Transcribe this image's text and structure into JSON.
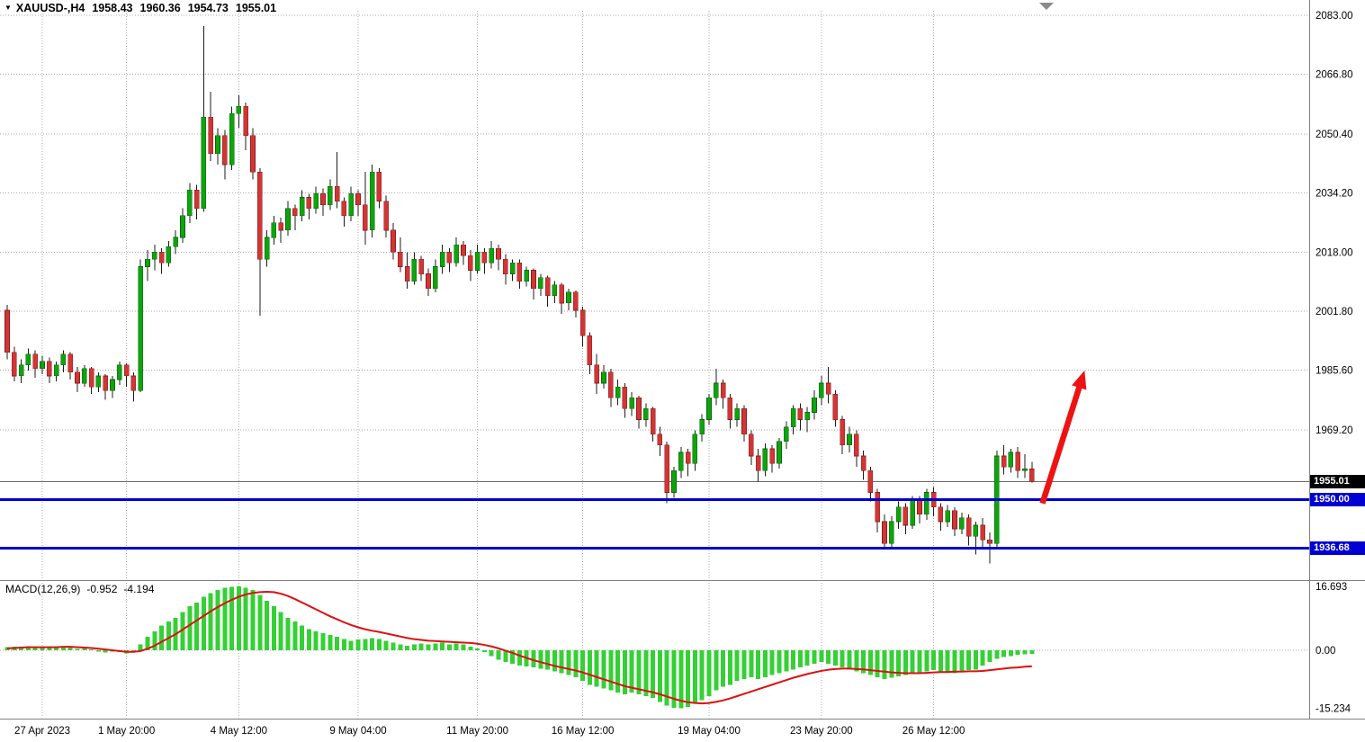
{
  "header": {
    "symbol_period": "XAUUSD-,H4",
    "open": "1958.43",
    "high": "1960.36",
    "low": "1954.73",
    "close": "1955.01"
  },
  "indicator": {
    "label": "MACD(12,26,9)",
    "main_value": "-0.952",
    "signal_value": "-4.194"
  },
  "price_axis": {
    "ticks": [
      {
        "label": "2083.00",
        "value": 2083.0
      },
      {
        "label": "2066.80",
        "value": 2066.8
      },
      {
        "label": "2050.40",
        "value": 2050.4
      },
      {
        "label": "2034.20",
        "value": 2034.2
      },
      {
        "label": "2018.00",
        "value": 2018.0
      },
      {
        "label": "2001.80",
        "value": 2001.8
      },
      {
        "label": "1985.60",
        "value": 1985.6
      },
      {
        "label": "1969.20",
        "value": 1969.2
      }
    ]
  },
  "macd_axis": {
    "ticks": [
      {
        "label": "16.693",
        "value": 16.693
      },
      {
        "label": "0.00",
        "value": 0
      },
      {
        "label": "-15.234",
        "value": -15.234
      }
    ]
  },
  "price_tags": [
    {
      "text": "1955.01",
      "value": 1955.01,
      "bg": "#000000"
    },
    {
      "text": "1950.00",
      "value": 1950.0,
      "bg": "#0000d2"
    },
    {
      "text": "1936.68",
      "value": 1936.68,
      "bg": "#0000d2"
    }
  ],
  "chart_data": {
    "type": "candlestick",
    "symbol": "XAUUSD-",
    "timeframe": "H4",
    "title": "XAUUSD-,H4 1958.43 1960.36 1954.73 1955.01",
    "y_range": [
      1928,
      2085
    ],
    "grid": true,
    "last_price": 1955.01,
    "hlines": [
      {
        "value": 1950.0
      },
      {
        "value": 1936.68
      }
    ],
    "time_ticks": [
      {
        "label": "27 Apr 2023",
        "index": 5
      },
      {
        "label": "1 May 20:00",
        "index": 17
      },
      {
        "label": "4 May 12:00",
        "index": 33
      },
      {
        "label": "9 May 04:00",
        "index": 50
      },
      {
        "label": "11 May 20:00",
        "index": 67
      },
      {
        "label": "16 May 12:00",
        "index": 82
      },
      {
        "label": "19 May 04:00",
        "index": 100
      },
      {
        "label": "23 May 20:00",
        "index": 116
      },
      {
        "label": "26 May 12:00",
        "index": 132
      }
    ],
    "candles": [
      [
        2002,
        2003.5,
        1988.5,
        1990.5
      ],
      [
        1990.5,
        1992,
        1982.5,
        1984
      ],
      [
        1984,
        1988.5,
        1982,
        1987
      ],
      [
        1987,
        1991.5,
        1985.5,
        1990
      ],
      [
        1990,
        1991,
        1983.5,
        1986
      ],
      [
        1986,
        1989.5,
        1984.5,
        1988
      ],
      [
        1988,
        1989,
        1982,
        1984
      ],
      [
        1984,
        1988,
        1982.5,
        1987
      ],
      [
        1987,
        1991,
        1985,
        1990
      ],
      [
        1990,
        1990.5,
        1983,
        1985
      ],
      [
        1985,
        1986.5,
        1979.5,
        1982
      ],
      [
        1982,
        1987,
        1981,
        1986
      ],
      [
        1986,
        1986.5,
        1979,
        1981
      ],
      [
        1981,
        1985,
        1979.5,
        1984
      ],
      [
        1984,
        1984.5,
        1977.5,
        1980
      ],
      [
        1980,
        1984,
        1978,
        1983
      ],
      [
        1983,
        1988,
        1981.5,
        1987
      ],
      [
        1987,
        1987.5,
        1981,
        1984
      ],
      [
        1984,
        1985,
        1977,
        1980
      ],
      [
        1980,
        2016,
        1979.5,
        2014
      ],
      [
        2014,
        2018.5,
        2010,
        2016
      ],
      [
        2016,
        2020,
        2013,
        2018
      ],
      [
        2018,
        2019,
        2012,
        2015
      ],
      [
        2015,
        2021,
        2014,
        2019.5
      ],
      [
        2019.5,
        2024,
        2017.5,
        2022
      ],
      [
        2022,
        2030,
        2020.5,
        2028
      ],
      [
        2028,
        2037,
        2026,
        2035
      ],
      [
        2035,
        2036.5,
        2027,
        2030
      ],
      [
        2030,
        2080,
        2029,
        2055
      ],
      [
        2055,
        2062,
        2043,
        2045
      ],
      [
        2045,
        2052,
        2042,
        2050
      ],
      [
        2050,
        2051.5,
        2038,
        2042
      ],
      [
        2042,
        2058,
        2040.5,
        2056
      ],
      [
        2056,
        2061,
        2052,
        2058
      ],
      [
        2058,
        2059,
        2046,
        2050
      ],
      [
        2050,
        2052,
        2038,
        2040
      ],
      [
        2040,
        2041,
        2000.5,
        2016
      ],
      [
        2016,
        2024,
        2014,
        2022
      ],
      [
        2022,
        2028,
        2020,
        2026
      ],
      [
        2026,
        2027.5,
        2020.5,
        2024
      ],
      [
        2024,
        2032,
        2022.5,
        2030
      ],
      [
        2030,
        2031,
        2024,
        2028
      ],
      [
        2028,
        2035,
        2026.5,
        2033
      ],
      [
        2033,
        2034,
        2027,
        2030
      ],
      [
        2030,
        2036,
        2028.5,
        2034
      ],
      [
        2034,
        2035.5,
        2028,
        2031
      ],
      [
        2031,
        2038,
        2029.5,
        2036
      ],
      [
        2036,
        2045.5,
        2030,
        2032
      ],
      [
        2032,
        2033,
        2025,
        2028
      ],
      [
        2028,
        2036,
        2026.5,
        2034
      ],
      [
        2034,
        2035,
        2028,
        2031
      ],
      [
        2031,
        2040,
        2020,
        2024
      ],
      [
        2024,
        2042,
        2022,
        2040
      ],
      [
        2040,
        2041,
        2030,
        2032
      ],
      [
        2032,
        2033.5,
        2022,
        2024
      ],
      [
        2024,
        2026,
        2016,
        2018
      ],
      [
        2018,
        2022,
        2012.5,
        2014
      ],
      [
        2014,
        2018,
        2008,
        2010
      ],
      [
        2010,
        2018,
        2009,
        2016
      ],
      [
        2016,
        2017,
        2010,
        2012
      ],
      [
        2012,
        2013.5,
        2006,
        2008
      ],
      [
        2008,
        2016,
        2007,
        2014
      ],
      [
        2014,
        2020,
        2012,
        2018
      ],
      [
        2018,
        2019,
        2012.5,
        2015
      ],
      [
        2015,
        2022,
        2014,
        2020
      ],
      [
        2020,
        2021,
        2014.5,
        2017
      ],
      [
        2017,
        2018.5,
        2010,
        2013
      ],
      [
        2013,
        2020,
        2012,
        2018
      ],
      [
        2018,
        2019,
        2012,
        2015
      ],
      [
        2015,
        2021,
        2013.5,
        2019
      ],
      [
        2019,
        2020,
        2013,
        2016
      ],
      [
        2016,
        2017.5,
        2009,
        2012
      ],
      [
        2012,
        2016,
        2010,
        2015
      ],
      [
        2015,
        2016,
        2008,
        2010
      ],
      [
        2010,
        2014,
        2008.5,
        2013
      ],
      [
        2013,
        2013.5,
        2005,
        2008
      ],
      [
        2008,
        2012,
        2006,
        2011
      ],
      [
        2011,
        2011.5,
        2003,
        2006
      ],
      [
        2006,
        2010,
        2004,
        2009
      ],
      [
        2009,
        2009.5,
        2001,
        2004
      ],
      [
        2004,
        2008,
        2002,
        2007
      ],
      [
        2007,
        2007.5,
        2000,
        2002
      ],
      [
        2002,
        2003,
        1992,
        1995
      ],
      [
        1995,
        1996,
        1984.5,
        1987
      ],
      [
        1987,
        1990,
        1979,
        1982
      ],
      [
        1982,
        1987,
        1980.5,
        1985
      ],
      [
        1985,
        1986,
        1975.5,
        1978
      ],
      [
        1978,
        1983,
        1976,
        1981
      ],
      [
        1981,
        1982,
        1972.5,
        1975
      ],
      [
        1975,
        1979.5,
        1973,
        1978
      ],
      [
        1978,
        1978.5,
        1969.5,
        1972
      ],
      [
        1972,
        1976.5,
        1970,
        1975
      ],
      [
        1975,
        1975.5,
        1966,
        1968
      ],
      [
        1968,
        1970,
        1962,
        1965
      ],
      [
        1965,
        1966,
        1949,
        1952
      ],
      [
        1952,
        1959,
        1950.5,
        1958
      ],
      [
        1958,
        1964.5,
        1956,
        1963
      ],
      [
        1963,
        1964,
        1956.5,
        1960
      ],
      [
        1960,
        1969,
        1958,
        1968
      ],
      [
        1968,
        1973.5,
        1966,
        1972
      ],
      [
        1972,
        1979,
        1970.5,
        1978
      ],
      [
        1978,
        1986,
        1976,
        1982
      ],
      [
        1982,
        1983,
        1975,
        1978
      ],
      [
        1978,
        1979,
        1969.5,
        1972
      ],
      [
        1972,
        1976.5,
        1970,
        1975
      ],
      [
        1975,
        1976,
        1966,
        1968
      ],
      [
        1968,
        1969,
        1959.5,
        1962
      ],
      [
        1962,
        1964,
        1955,
        1958
      ],
      [
        1958,
        1965.5,
        1956.5,
        1964
      ],
      [
        1964,
        1965,
        1957.5,
        1960
      ],
      [
        1960,
        1967,
        1958.5,
        1966
      ],
      [
        1966,
        1971.5,
        1964,
        1970
      ],
      [
        1970,
        1976,
        1968,
        1975
      ],
      [
        1975,
        1976.5,
        1969,
        1972
      ],
      [
        1972,
        1975.5,
        1968.5,
        1974
      ],
      [
        1974,
        1980,
        1972,
        1978
      ],
      [
        1978,
        1984,
        1976,
        1982
      ],
      [
        1982,
        1986.5,
        1976.5,
        1979
      ],
      [
        1979,
        1980,
        1970,
        1972
      ],
      [
        1972,
        1973,
        1962.5,
        1965
      ],
      [
        1965,
        1970,
        1963,
        1968
      ],
      [
        1968,
        1969,
        1959,
        1962
      ],
      [
        1962,
        1963.5,
        1955.5,
        1958
      ],
      [
        1958,
        1959,
        1949.5,
        1952
      ],
      [
        1952,
        1953,
        1941,
        1944
      ],
      [
        1944,
        1946,
        1936.5,
        1938
      ],
      [
        1938,
        1945.5,
        1937,
        1944
      ],
      [
        1944,
        1949.5,
        1942,
        1948
      ],
      [
        1948,
        1949,
        1940.5,
        1943
      ],
      [
        1943,
        1951,
        1942,
        1950
      ],
      [
        1950,
        1951,
        1943.5,
        1946
      ],
      [
        1946,
        1953,
        1944.5,
        1952
      ],
      [
        1952,
        1953.5,
        1945.5,
        1948
      ],
      [
        1948,
        1949,
        1941.5,
        1944
      ],
      [
        1944,
        1948.5,
        1942.5,
        1947
      ],
      [
        1947,
        1948,
        1940,
        1942
      ],
      [
        1942,
        1946.5,
        1940.5,
        1945
      ],
      [
        1945,
        1946,
        1937.5,
        1940
      ],
      [
        1940,
        1944,
        1935,
        1943
      ],
      [
        1943,
        1945,
        1936.5,
        1939
      ],
      [
        1939,
        1941,
        1932.5,
        1938
      ],
      [
        1938,
        1963.5,
        1937,
        1962
      ],
      [
        1962,
        1965,
        1957,
        1959
      ],
      [
        1959,
        1964,
        1957.5,
        1963
      ],
      [
        1963,
        1964.5,
        1956,
        1958
      ],
      [
        1958,
        1962.5,
        1956,
        1958.43
      ],
      [
        1958.43,
        1960.36,
        1954.73,
        1955.01
      ]
    ],
    "macd": {
      "params": "12,26,9",
      "histogram": [
        0.8,
        1.0,
        0.9,
        1.1,
        0.8,
        0.9,
        0.7,
        0.8,
        1.0,
        0.7,
        0.4,
        0.6,
        0.2,
        -0.3,
        -0.6,
        -0.4,
        -0.5,
        -0.8,
        -0.2,
        1.5,
        3.5,
        5.0,
        6.5,
        7.5,
        8.5,
        10.0,
        11.5,
        12.5,
        14.0,
        15.0,
        15.8,
        16.3,
        16.6,
        16.69,
        16.4,
        15.8,
        14.5,
        13.0,
        11.5,
        10.0,
        8.5,
        7.5,
        6.5,
        5.5,
        5.0,
        4.5,
        4.0,
        3.5,
        3.0,
        2.5,
        2.8,
        3.0,
        3.2,
        3.0,
        2.5,
        2.0,
        1.5,
        1.2,
        1.5,
        1.8,
        1.5,
        1.8,
        2.0,
        1.5,
        1.8,
        1.5,
        1.0,
        0.5,
        -0.5,
        -1.5,
        -2.5,
        -3.0,
        -3.5,
        -4.0,
        -4.2,
        -4.5,
        -4.8,
        -5.0,
        -5.5,
        -6.0,
        -6.5,
        -7.0,
        -8.0,
        -9.0,
        -9.5,
        -10.0,
        -10.5,
        -11.0,
        -11.5,
        -11.0,
        -11.5,
        -12.0,
        -12.5,
        -13.5,
        -14.5,
        -15.0,
        -15.2,
        -14.8,
        -14.0,
        -13.0,
        -12.0,
        -10.5,
        -9.5,
        -9.0,
        -8.0,
        -7.5,
        -7.0,
        -7.5,
        -7.0,
        -6.5,
        -6.0,
        -5.5,
        -5.0,
        -4.5,
        -4.0,
        -3.5,
        -3.0,
        -3.5,
        -4.0,
        -4.5,
        -5.0,
        -5.5,
        -6.0,
        -6.5,
        -7.0,
        -7.5,
        -7.2,
        -6.8,
        -6.5,
        -6.0,
        -5.8,
        -5.5,
        -5.2,
        -5.5,
        -5.8,
        -6.0,
        -5.5,
        -5.2,
        -5.0,
        -4.0,
        -3.0,
        -2.2,
        -1.8,
        -1.5,
        -1.2,
        -1.0,
        -0.952
      ],
      "signal": [
        0.5,
        0.6,
        0.7,
        0.8,
        0.8,
        0.8,
        0.8,
        0.8,
        0.9,
        0.9,
        0.8,
        0.7,
        0.6,
        0.4,
        0.2,
        0.0,
        -0.2,
        -0.4,
        -0.4,
        -0.2,
        0.4,
        1.2,
        2.2,
        3.2,
        4.2,
        5.4,
        6.6,
        7.8,
        9.0,
        10.2,
        11.3,
        12.3,
        13.2,
        14.0,
        14.6,
        15.0,
        15.2,
        15.3,
        15.2,
        14.8,
        14.2,
        13.4,
        12.5,
        11.6,
        10.7,
        9.8,
        8.9,
        8.1,
        7.3,
        6.6,
        6.0,
        5.5,
        5.1,
        4.8,
        4.4,
        4.0,
        3.6,
        3.2,
        2.9,
        2.7,
        2.5,
        2.4,
        2.3,
        2.2,
        2.1,
        2.0,
        1.9,
        1.7,
        1.4,
        1.0,
        0.5,
        -0.1,
        -0.7,
        -1.4,
        -2.0,
        -2.6,
        -3.1,
        -3.6,
        -4.1,
        -4.5,
        -4.9,
        -5.3,
        -5.8,
        -6.4,
        -7.0,
        -7.6,
        -8.2,
        -8.8,
        -9.4,
        -9.8,
        -10.2,
        -10.6,
        -11.0,
        -11.5,
        -12.1,
        -12.7,
        -13.2,
        -13.6,
        -13.8,
        -13.9,
        -13.8,
        -13.5,
        -13.1,
        -12.6,
        -12.0,
        -11.4,
        -10.8,
        -10.2,
        -9.6,
        -9.0,
        -8.4,
        -7.8,
        -7.2,
        -6.7,
        -6.2,
        -5.8,
        -5.4,
        -5.1,
        -4.9,
        -4.8,
        -4.8,
        -4.9,
        -5.0,
        -5.2,
        -5.4,
        -5.6,
        -5.8,
        -5.9,
        -6.0,
        -6.0,
        -6.0,
        -5.9,
        -5.8,
        -5.7,
        -5.7,
        -5.6,
        -5.6,
        -5.5,
        -5.5,
        -5.4,
        -5.2,
        -5.0,
        -4.8,
        -4.6,
        -4.5,
        -4.3,
        -4.194
      ]
    },
    "arrow": {
      "from": {
        "index": 147.5,
        "price": 1949.0
      },
      "to": {
        "index": 153.5,
        "price": 1985.5
      }
    },
    "colors": {
      "bull": "#0fa30f",
      "bull_edge": "#046a04",
      "bear": "#d23535",
      "bear_edge": "#8d1d1d",
      "wick": "#1c1c1c",
      "grid": "#aaaab6",
      "hline": "#0000d2",
      "last_price_line": "#6a6a6a",
      "macd_hist": "#35d035",
      "macd_signal": "#dd1010",
      "arrow": "#ee1313",
      "separator": "#808080",
      "shift_marker": "#8a8a8a",
      "axis_text": "#000000"
    }
  }
}
